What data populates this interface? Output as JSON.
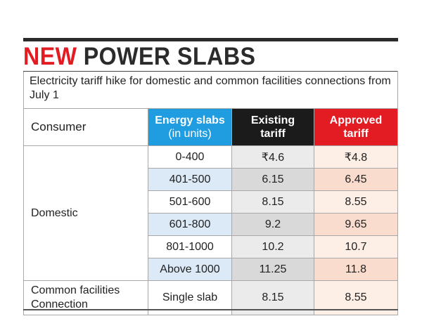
{
  "title": {
    "word1": "NEW",
    "word2": "POWER SLABS"
  },
  "subtitle": "Electricity tariff hike for domestic and common facilities connections from July 1",
  "headers": {
    "consumer": "Consumer",
    "energy_slabs": "Energy slabs",
    "energy_slabs_unit": "(in units)",
    "existing": "Existing",
    "existing_2": "tariff",
    "approved": "Approved",
    "approved_2": "tariff"
  },
  "colors": {
    "accent_red": "#e31b23",
    "accent_blue": "#1f9de0",
    "dark": "#1b1b1b"
  },
  "rows": [
    {
      "consumer": "Domestic",
      "slab": "0-400",
      "existing": "₹4.6",
      "approved": "₹4.8"
    },
    {
      "slab": "401-500",
      "existing": "6.15",
      "approved": "6.45"
    },
    {
      "slab": "501-600",
      "existing": "8.15",
      "approved": "8.55"
    },
    {
      "slab": "601-800",
      "existing": "9.2",
      "approved": "9.65"
    },
    {
      "slab": "801-1000",
      "existing": "10.2",
      "approved": "10.7"
    },
    {
      "slab": "Above 1000",
      "existing": "11.25",
      "approved": "11.8"
    }
  ],
  "common": {
    "consumer_line1": "Common facilities",
    "consumer_line2": "Connection",
    "slab": "Single slab",
    "existing": "8.15",
    "approved": "8.55"
  }
}
